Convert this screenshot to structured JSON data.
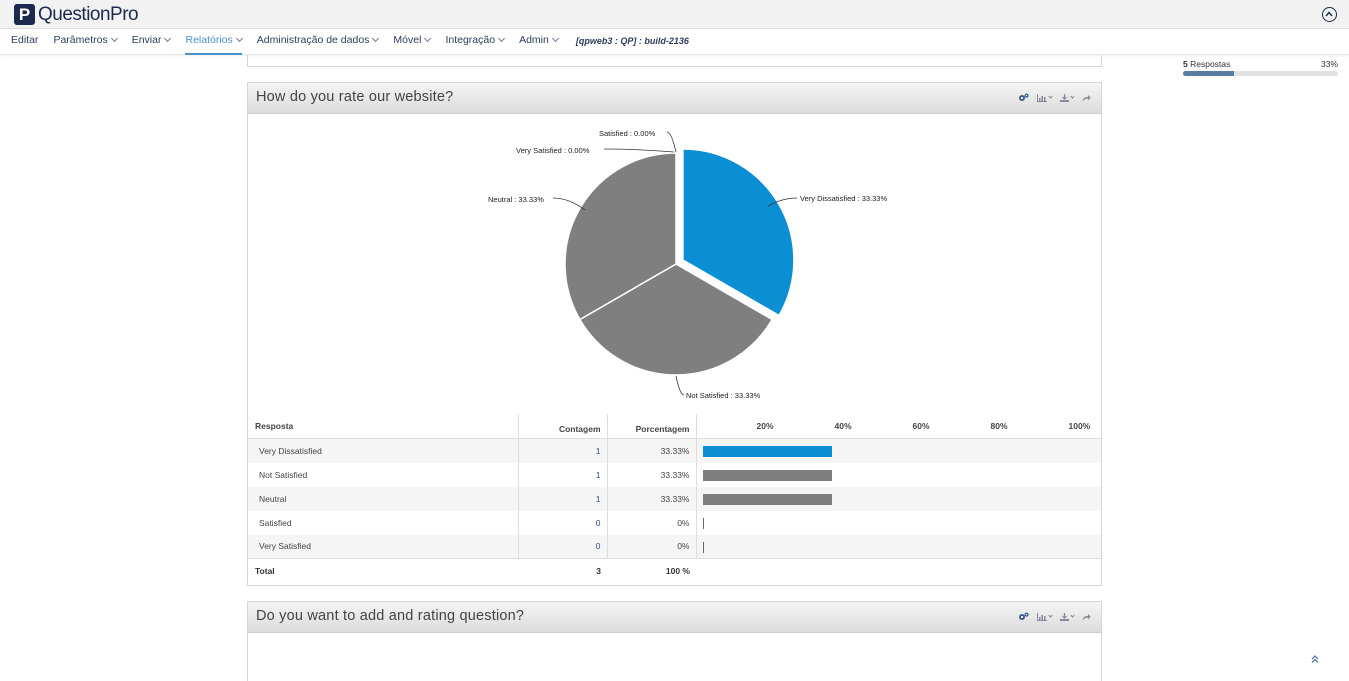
{
  "app": {
    "logo_letter": "P",
    "logo_name": "QuestionPro"
  },
  "nav": {
    "items": [
      {
        "label": "Editar",
        "dropdown": false,
        "active": false
      },
      {
        "label": "Parâmetros",
        "dropdown": true,
        "active": false
      },
      {
        "label": "Enviar",
        "dropdown": true,
        "active": false
      },
      {
        "label": "Relatórios",
        "dropdown": true,
        "active": true
      },
      {
        "label": "Administração de dados",
        "dropdown": true,
        "active": false
      },
      {
        "label": "Móvel",
        "dropdown": true,
        "active": false
      },
      {
        "label": "Integração",
        "dropdown": true,
        "active": false
      },
      {
        "label": "Admin",
        "dropdown": true,
        "active": false
      }
    ],
    "build": "[qpweb3 : QP] : build-2136"
  },
  "responses": {
    "count": "5",
    "label": "Respostas",
    "percent_label": "33%",
    "progress": 0.33
  },
  "question1": {
    "title": "How do you rate our website?",
    "table_headers": {
      "response": "Resposta",
      "count": "Contagem",
      "percentage": "Porcentagem",
      "scale": [
        "20%",
        "40%",
        "60%",
        "80%",
        "100%"
      ]
    },
    "rows": [
      {
        "label": "Very Dissatisfied",
        "count": "1",
        "pct": "33.33%",
        "value": 33.33,
        "color": "#0a8fd4"
      },
      {
        "label": "Not Satisfied",
        "count": "1",
        "pct": "33.33%",
        "value": 33.33,
        "color": "#7f7f7f"
      },
      {
        "label": "Neutral",
        "count": "1",
        "pct": "33.33%",
        "value": 33.33,
        "color": "#7f7f7f"
      },
      {
        "label": "Satisfied",
        "count": "0",
        "pct": "0%",
        "value": 0,
        "color": "#7f7f7f"
      },
      {
        "label": "Very Satisfied",
        "count": "0",
        "pct": "0%",
        "value": 0,
        "color": "#7f7f7f"
      }
    ],
    "total": {
      "label": "Total",
      "count": "3",
      "pct": "100 %"
    }
  },
  "question2": {
    "title": "Do you want to add and rating question?"
  },
  "chart_data": {
    "type": "pie",
    "categories": [
      "Very Dissatisfied",
      "Not Satisfied",
      "Neutral",
      "Satisfied",
      "Very Satisfied"
    ],
    "values": [
      33.33,
      33.33,
      33.33,
      0.0,
      0.0
    ],
    "labels": [
      "Very Dissatisfied : 33.33%",
      "Not Satisfied : 33.33%",
      "Neutral : 33.33%",
      "Satisfied : 0.00%",
      "Very Satisfied : 0.00%"
    ],
    "colors": [
      "#0a8fd4",
      "#7f7f7f",
      "#7f7f7f",
      "#7f7f7f",
      "#7f7f7f"
    ],
    "exploded_slice": "Very Dissatisfied"
  }
}
